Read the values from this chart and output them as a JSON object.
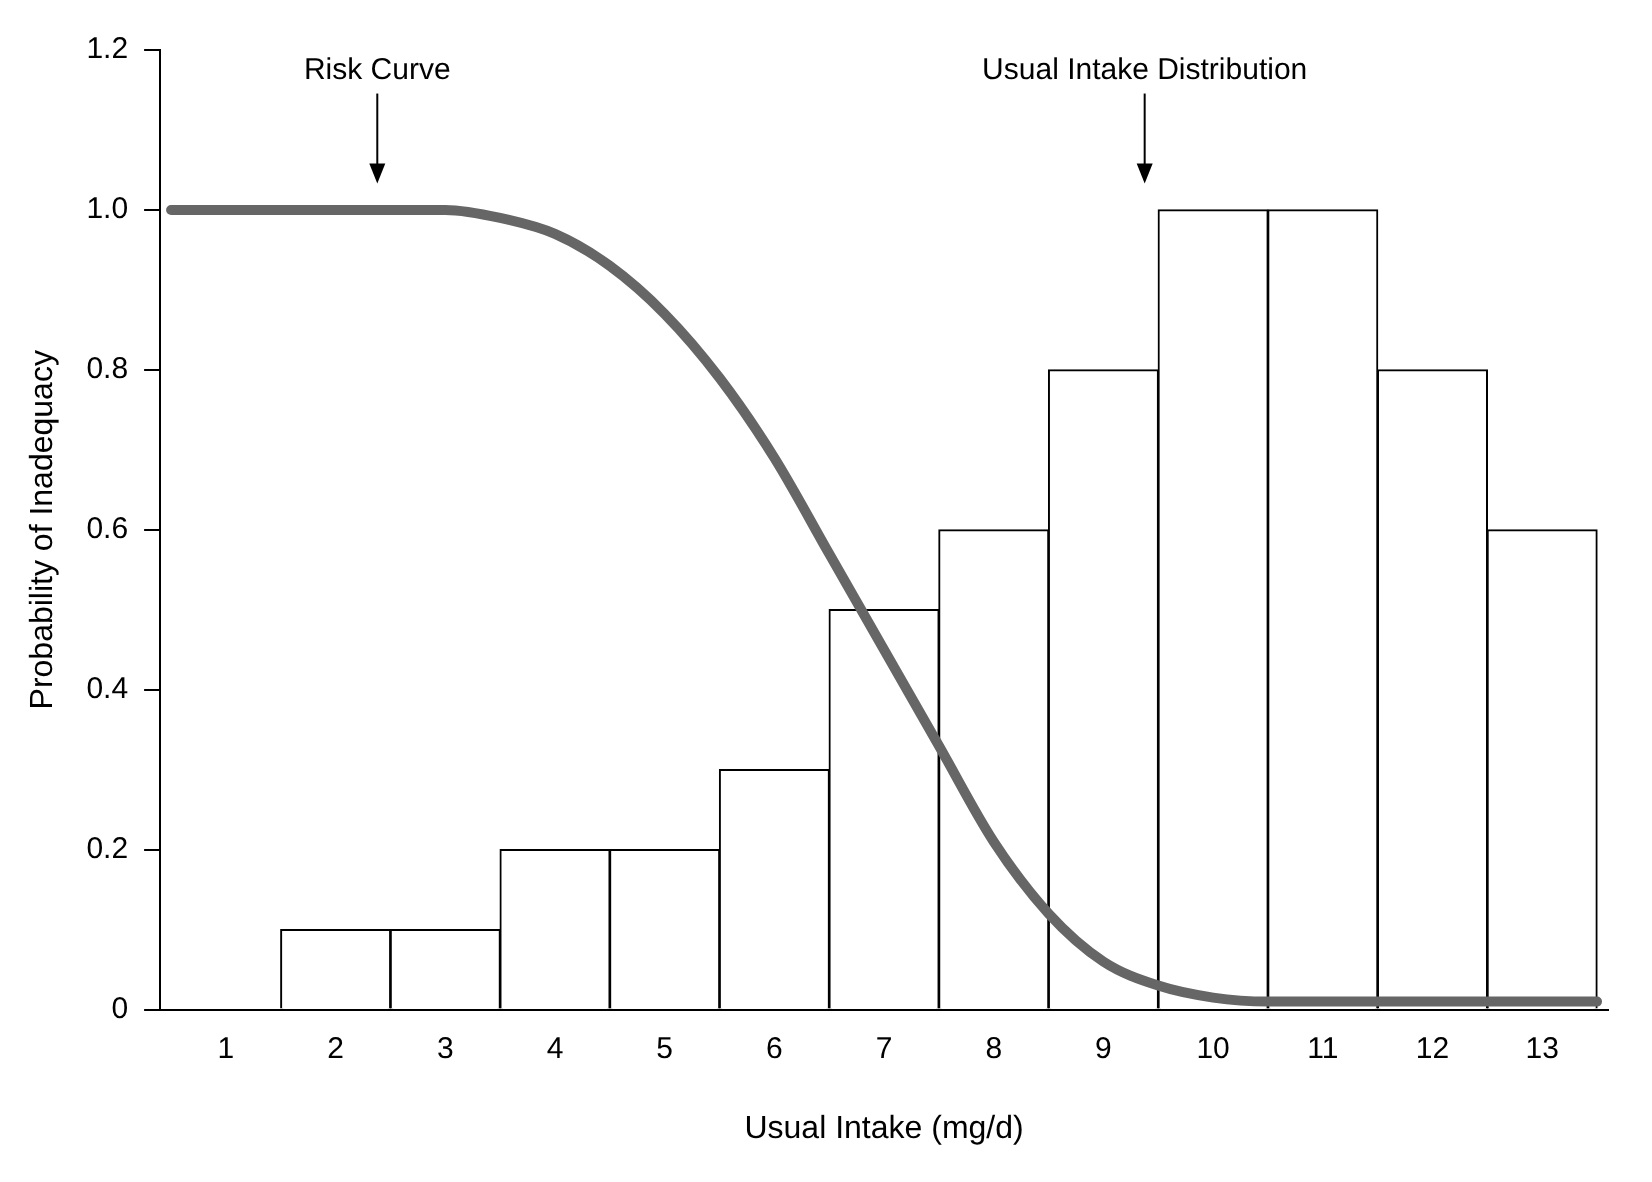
{
  "chart_data": {
    "type": "bar",
    "xlabel": "Usual Intake (mg/d)",
    "ylabel": "Probability of Inadequacy",
    "x": [
      1,
      2,
      3,
      4,
      5,
      6,
      7,
      8,
      9,
      10,
      11,
      12,
      13
    ],
    "xlim": [
      0.4,
      13.6
    ],
    "xticks": [
      1,
      2,
      3,
      4,
      5,
      6,
      7,
      8,
      9,
      10,
      11,
      12,
      13
    ],
    "ylim": [
      0,
      1.2
    ],
    "yticks": [
      0,
      0.2,
      0.4,
      0.6,
      0.8,
      {
        "value": 1,
        "label": "1.0"
      },
      1.2
    ],
    "grid": false,
    "legend": false,
    "series": [
      {
        "color": "#ffffff",
        "values": [
          0,
          0.1,
          0.1,
          0.2,
          0.2,
          0.3,
          0.5,
          0.6,
          0.8,
          1.0,
          1.0,
          0.8,
          0.6
        ]
      },
      {
        "type": "line",
        "color": "#666666",
        "x": [
          0.5,
          1,
          2,
          3,
          3.5,
          4,
          4.5,
          5,
          5.5,
          6,
          6.5,
          7,
          7.5,
          8,
          8.5,
          9,
          9.5,
          10,
          10.5,
          11,
          12,
          13.5
        ],
        "values": [
          1.0,
          1.0,
          1.0,
          1.0,
          0.99,
          0.97,
          0.93,
          0.87,
          0.79,
          0.69,
          0.57,
          0.45,
          0.33,
          0.21,
          0.12,
          0.06,
          0.03,
          0.015,
          0.01,
          0.01,
          0.01,
          0.01
        ]
      }
    ],
    "annotations": [
      "Risk Curve",
      "Usual Intake Distribution"
    ]
  }
}
